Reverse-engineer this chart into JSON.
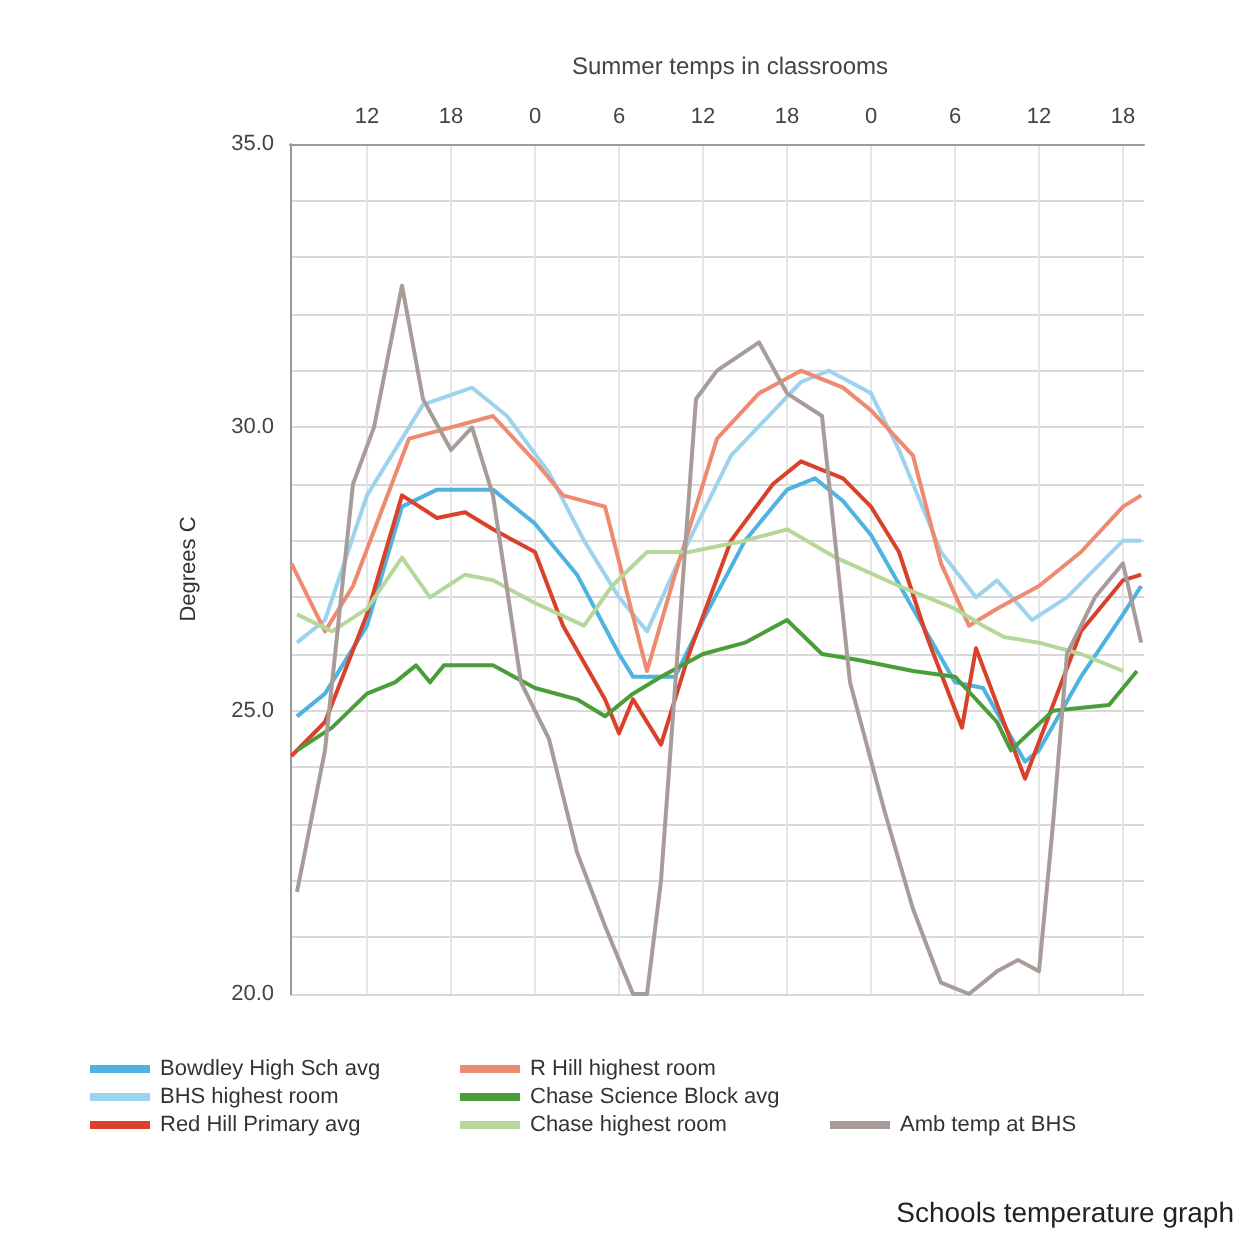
{
  "chart_data": {
    "type": "line",
    "title": "Summer temps in classrooms",
    "ylabel": "Degrees C",
    "annotations": [
      "Schools temperature graph"
    ],
    "xlim": [
      "--06-01T06:30",
      "--06-03T19:30"
    ],
    "xticks": [
      {
        "value": "--06-01T12:00",
        "label": "12"
      },
      {
        "value": "--06-01T18:00",
        "label": "18"
      },
      {
        "value": "--06-02T00:00",
        "label": "0"
      },
      {
        "value": "--06-02T06:00",
        "label": "6"
      },
      {
        "value": "--06-02T12:00",
        "label": "12"
      },
      {
        "value": "--06-02T18:00",
        "label": "18"
      },
      {
        "value": "--06-03T00:00",
        "label": "0"
      },
      {
        "value": "--06-03T06:00",
        "label": "6"
      },
      {
        "value": "--06-03T12:00",
        "label": "12"
      },
      {
        "value": "--06-03T18:00",
        "label": "18"
      }
    ],
    "ylim": [
      20,
      35
    ],
    "yticks": [
      {
        "value": 20,
        "label": "20.0"
      },
      {
        "value": 21,
        "label": null
      },
      {
        "value": 22,
        "label": null
      },
      {
        "value": 23,
        "label": null
      },
      {
        "value": 24,
        "label": null
      },
      {
        "value": 25,
        "label": "25.0"
      },
      {
        "value": 26,
        "label": null
      },
      {
        "value": 27,
        "label": null
      },
      {
        "value": 28,
        "label": null
      },
      {
        "value": 29,
        "label": null
      },
      {
        "value": 30,
        "label": "30.0"
      },
      {
        "value": 31,
        "label": null
      },
      {
        "value": 32,
        "label": null
      },
      {
        "value": 33,
        "label": null
      },
      {
        "value": 34,
        "label": null
      },
      {
        "value": 35,
        "label": "35.0"
      }
    ],
    "grid": true,
    "legend": "bottom",
    "marker": "none",
    "line_style": "solid",
    "series": [
      {
        "name": "Bowdley High Sch avg",
        "color": "#4fb3e0",
        "x": [
          "--06-01T07:00",
          "--06-01T09:00",
          "--06-01T12:00",
          "--06-01T14:30",
          "--06-01T17:00",
          "--06-01T21:00",
          "--06-02T00:00",
          "--06-02T03:00",
          "--06-02T06:00",
          "--06-02T07:00",
          "--06-02T10:00",
          "--06-02T12:00",
          "--06-02T15:00",
          "--06-02T18:00",
          "--06-02T20:00",
          "--06-02T22:00",
          "--06-03T00:00",
          "--06-03T03:00",
          "--06-03T06:00",
          "--06-03T08:00",
          "--06-03T11:00",
          "--06-03T12:00",
          "--06-03T15:00",
          "--06-03T18:00",
          "--06-03T19:18"
        ],
        "values": [
          24.9,
          25.3,
          26.5,
          28.6,
          28.9,
          28.9,
          28.3,
          27.4,
          26.0,
          25.6,
          25.6,
          26.6,
          28.0,
          28.9,
          29.1,
          28.7,
          28.1,
          26.8,
          25.5,
          25.4,
          24.1,
          24.3,
          25.6,
          26.7,
          27.2
        ]
      },
      {
        "name": "BHS highest room",
        "color": "#9ed3ee",
        "x": [
          "--06-01T07:00",
          "--06-01T09:00",
          "--06-01T12:00",
          "--06-01T16:00",
          "--06-01T19:30",
          "--06-01T22:00",
          "--06-02T01:00",
          "--06-02T03:30",
          "--06-02T06:00",
          "--06-02T08:00",
          "--06-02T10:00",
          "--06-02T14:00",
          "--06-02T19:00",
          "--06-02T21:00",
          "--06-03T00:00",
          "--06-03T02:00",
          "--06-03T05:00",
          "--06-03T07:30",
          "--06-03T09:00",
          "--06-03T11:30",
          "--06-03T14:00",
          "--06-03T18:00",
          "--06-03T19:18"
        ],
        "values": [
          26.2,
          26.6,
          28.8,
          30.4,
          30.7,
          30.2,
          29.2,
          28.0,
          27.0,
          26.4,
          27.5,
          29.5,
          30.8,
          31.0,
          30.6,
          29.6,
          27.8,
          27.0,
          27.3,
          26.6,
          27.0,
          28.0,
          28.0
        ]
      },
      {
        "name": "Red Hill Primary avg",
        "color": "#d9412b",
        "x": [
          "--06-01T06:36",
          "--06-01T09:00",
          "--06-01T12:00",
          "--06-01T14:30",
          "--06-01T17:00",
          "--06-01T19:00",
          "--06-01T21:00",
          "--06-02T00:00",
          "--06-02T02:00",
          "--06-02T05:00",
          "--06-02T06:00",
          "--06-02T07:00",
          "--06-02T09:00",
          "--06-02T11:00",
          "--06-02T14:00",
          "--06-02T17:00",
          "--06-02T19:00",
          "--06-02T22:00",
          "--06-03T00:00",
          "--06-03T02:00",
          "--06-03T04:00",
          "--06-03T06:30",
          "--06-03T07:30",
          "--06-03T11:00",
          "--06-03T15:00",
          "--06-03T18:00",
          "--06-03T19:18"
        ],
        "values": [
          24.2,
          24.8,
          26.7,
          28.8,
          28.4,
          28.5,
          28.2,
          27.8,
          26.5,
          25.2,
          24.6,
          25.2,
          24.4,
          26.0,
          28.0,
          29.0,
          29.4,
          29.1,
          28.6,
          27.8,
          26.3,
          24.7,
          26.1,
          23.8,
          26.4,
          27.3,
          27.4
        ]
      },
      {
        "name": "R Hill highest room",
        "color": "#ee8a70",
        "x": [
          "--06-01T06:36",
          "--06-01T09:00",
          "--06-01T11:00",
          "--06-01T15:00",
          "--06-01T18:00",
          "--06-01T21:00",
          "--06-02T00:00",
          "--06-02T02:00",
          "--06-02T05:00",
          "--06-02T08:00",
          "--06-02T10:00",
          "--06-02T13:00",
          "--06-02T16:00",
          "--06-02T19:00",
          "--06-02T22:00",
          "--06-03T00:00",
          "--06-03T03:00",
          "--06-03T05:00",
          "--06-03T07:00",
          "--06-03T09:00",
          "--06-03T12:00",
          "--06-03T15:00",
          "--06-03T18:00",
          "--06-03T19:18"
        ],
        "values": [
          27.6,
          26.4,
          27.2,
          29.8,
          30.0,
          30.2,
          29.4,
          28.8,
          28.6,
          25.7,
          27.4,
          29.8,
          30.6,
          31.0,
          30.7,
          30.3,
          29.5,
          27.6,
          26.5,
          26.8,
          27.2,
          27.8,
          28.6,
          28.8
        ]
      },
      {
        "name": "Chase Science Block avg",
        "color": "#4a9e3a",
        "x": [
          "--06-01T07:00",
          "--06-01T09:30",
          "--06-01T12:00",
          "--06-01T14:00",
          "--06-01T15:30",
          "--06-01T16:30",
          "--06-01T17:30",
          "--06-01T21:00",
          "--06-02T00:00",
          "--06-02T03:00",
          "--06-02T05:00",
          "--06-02T07:00",
          "--06-02T09:00",
          "--06-02T12:00",
          "--06-02T15:00",
          "--06-02T18:00",
          "--06-02T20:30",
          "--06-02T23:00",
          "--06-03T03:00",
          "--06-03T06:00",
          "--06-03T09:00",
          "--06-03T10:00",
          "--06-03T13:00",
          "--06-03T17:00",
          "--06-03T19:00"
        ],
        "values": [
          24.3,
          24.7,
          25.3,
          25.5,
          25.8,
          25.5,
          25.8,
          25.8,
          25.4,
          25.2,
          24.9,
          25.3,
          25.6,
          26.0,
          26.2,
          26.6,
          26.0,
          25.9,
          25.7,
          25.6,
          24.8,
          24.3,
          25.0,
          25.1,
          25.7
        ]
      },
      {
        "name": "Chase highest room",
        "color": "#b5d89a",
        "x": [
          "--06-01T07:00",
          "--06-01T09:30",
          "--06-01T12:00",
          "--06-01T14:30",
          "--06-01T16:30",
          "--06-01T19:00",
          "--06-01T21:00",
          "--06-02T00:00",
          "--06-02T03:30",
          "--06-02T05:30",
          "--06-02T08:00",
          "--06-02T11:00",
          "--06-02T15:00",
          "--06-02T18:00",
          "--06-02T21:30",
          "--06-03T02:00",
          "--06-03T06:00",
          "--06-03T08:00",
          "--06-03T09:30",
          "--06-03T12:00",
          "--06-03T15:00",
          "--06-03T18:00"
        ],
        "values": [
          26.7,
          26.4,
          26.8,
          27.7,
          27.0,
          27.4,
          27.3,
          26.9,
          26.5,
          27.2,
          27.8,
          27.8,
          28.0,
          28.2,
          27.7,
          27.2,
          26.8,
          26.5,
          26.3,
          26.2,
          26.0,
          25.7
        ]
      },
      {
        "name": "Amb temp at BHS",
        "color": "#a89c98",
        "x": [
          "--06-01T07:00",
          "--06-01T09:00",
          "--06-01T11:00",
          "--06-01T12:30",
          "--06-01T14:30",
          "--06-01T16:00",
          "--06-01T18:00",
          "--06-01T19:30",
          "--06-01T21:00",
          "--06-01T23:00",
          "--06-02T01:00",
          "--06-02T03:00",
          "--06-02T05:00",
          "--06-02T07:00",
          "--06-02T08:00",
          "--06-02T09:00",
          "--06-02T11:30",
          "--06-02T13:00",
          "--06-02T16:00",
          "--06-02T18:00",
          "--06-02T20:30",
          "--06-02T22:30",
          "--06-03T01:00",
          "--06-03T03:00",
          "--06-03T05:00",
          "--06-03T07:00",
          "--06-03T09:00",
          "--06-03T10:30",
          "--06-03T12:00",
          "--06-03T13:00",
          "--06-03T14:00",
          "--06-03T16:00",
          "--06-03T18:00",
          "--06-03T19:18"
        ],
        "values": [
          21.8,
          24.3,
          29.0,
          30.0,
          32.5,
          30.5,
          29.6,
          30.0,
          28.8,
          25.5,
          24.5,
          22.5,
          21.2,
          20.0,
          20.0,
          22.0,
          30.5,
          31.0,
          31.5,
          30.6,
          30.2,
          25.5,
          23.2,
          21.5,
          20.2,
          20.0,
          20.4,
          20.6,
          20.4,
          23.0,
          26.0,
          27.0,
          27.6,
          26.2
        ]
      }
    ]
  }
}
